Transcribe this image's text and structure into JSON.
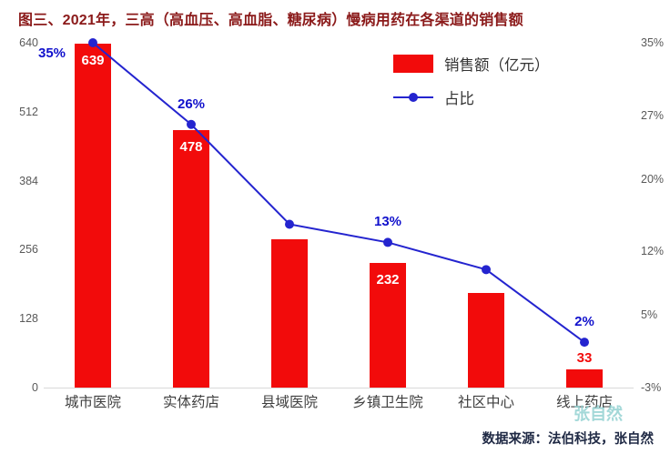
{
  "title": "图三、2021年，三高（高血压、高血脂、糖尿病）慢病用药在各渠道的销售额",
  "legend": {
    "bar_label": "销售额（亿元）",
    "line_label": "占比"
  },
  "source": "数据来源：法伯科技，张自然",
  "watermark": "张自然",
  "colors": {
    "bar": "#f20b0b",
    "line": "#2424cf",
    "pct_label": "#1111cc",
    "title": "#8b1a1a",
    "watermark": "#93d2d2"
  },
  "chart_data": {
    "type": "bar+line",
    "title": "图三、2021年，三高（高血压、高血脂、糖尿病）慢病用药在各渠道的销售额",
    "categories": [
      "城市医院",
      "实体药店",
      "县域医院",
      "乡镇卫生院",
      "社区中心",
      "线上药店"
    ],
    "series": [
      {
        "name": "销售额（亿元）",
        "type": "bar",
        "values": [
          639,
          478,
          275,
          232,
          175,
          33
        ],
        "data_labels": [
          {
            "index": 0,
            "text": "639",
            "placement": "inside"
          },
          {
            "index": 1,
            "text": "478",
            "placement": "inside"
          },
          {
            "index": 3,
            "text": "232",
            "placement": "inside"
          },
          {
            "index": 5,
            "text": "33",
            "placement": "above"
          }
        ]
      },
      {
        "name": "占比",
        "type": "line",
        "values": [
          35,
          26,
          15,
          13,
          10,
          2
        ],
        "data_labels": [
          {
            "index": 0,
            "text": "35%"
          },
          {
            "index": 1,
            "text": "26%"
          },
          {
            "index": 3,
            "text": "13%"
          },
          {
            "index": 5,
            "text": "2%"
          }
        ]
      }
    ],
    "left_axis": {
      "ticks": [
        0,
        128,
        256,
        384,
        512,
        640
      ],
      "min": 0,
      "max": 640
    },
    "right_axis": {
      "ticks": [
        "-3%",
        "5%",
        "12%",
        "20%",
        "27%",
        "35%"
      ],
      "min": -3,
      "max": 35
    },
    "grid": false,
    "legend_position": "top-center"
  }
}
